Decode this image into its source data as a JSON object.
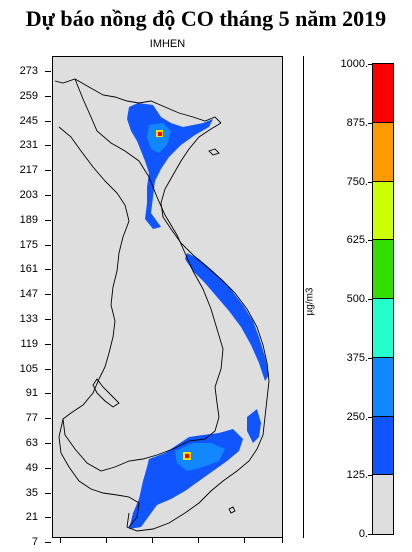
{
  "title": "Dự báo nồng độ CO tháng 5 năm 2019",
  "subtitle": "IMHEN",
  "y_ticks": [
    "273",
    "259",
    "245",
    "231",
    "217",
    "203",
    "189",
    "175",
    "161",
    "147",
    "133",
    "119",
    "105",
    "91",
    "77",
    "63",
    "49",
    "35",
    "21",
    "7"
  ],
  "colorbar": {
    "unit": "µg/m3",
    "labels": [
      "1000.",
      "875.",
      "750.",
      "625.",
      "500.",
      "375.",
      "250.",
      "125.",
      "0."
    ],
    "colors": [
      "#ff0000",
      "#ff9900",
      "#ccff00",
      "#33dd00",
      "#22ffcc",
      "#1188ff",
      "#1155ff",
      "#dedede"
    ]
  },
  "map": {
    "background": "#dedede",
    "low_color": "#1155ff",
    "mid_color": "#1188ff",
    "high_color": "#ff0000",
    "hot_color": "#ffdd00"
  }
}
